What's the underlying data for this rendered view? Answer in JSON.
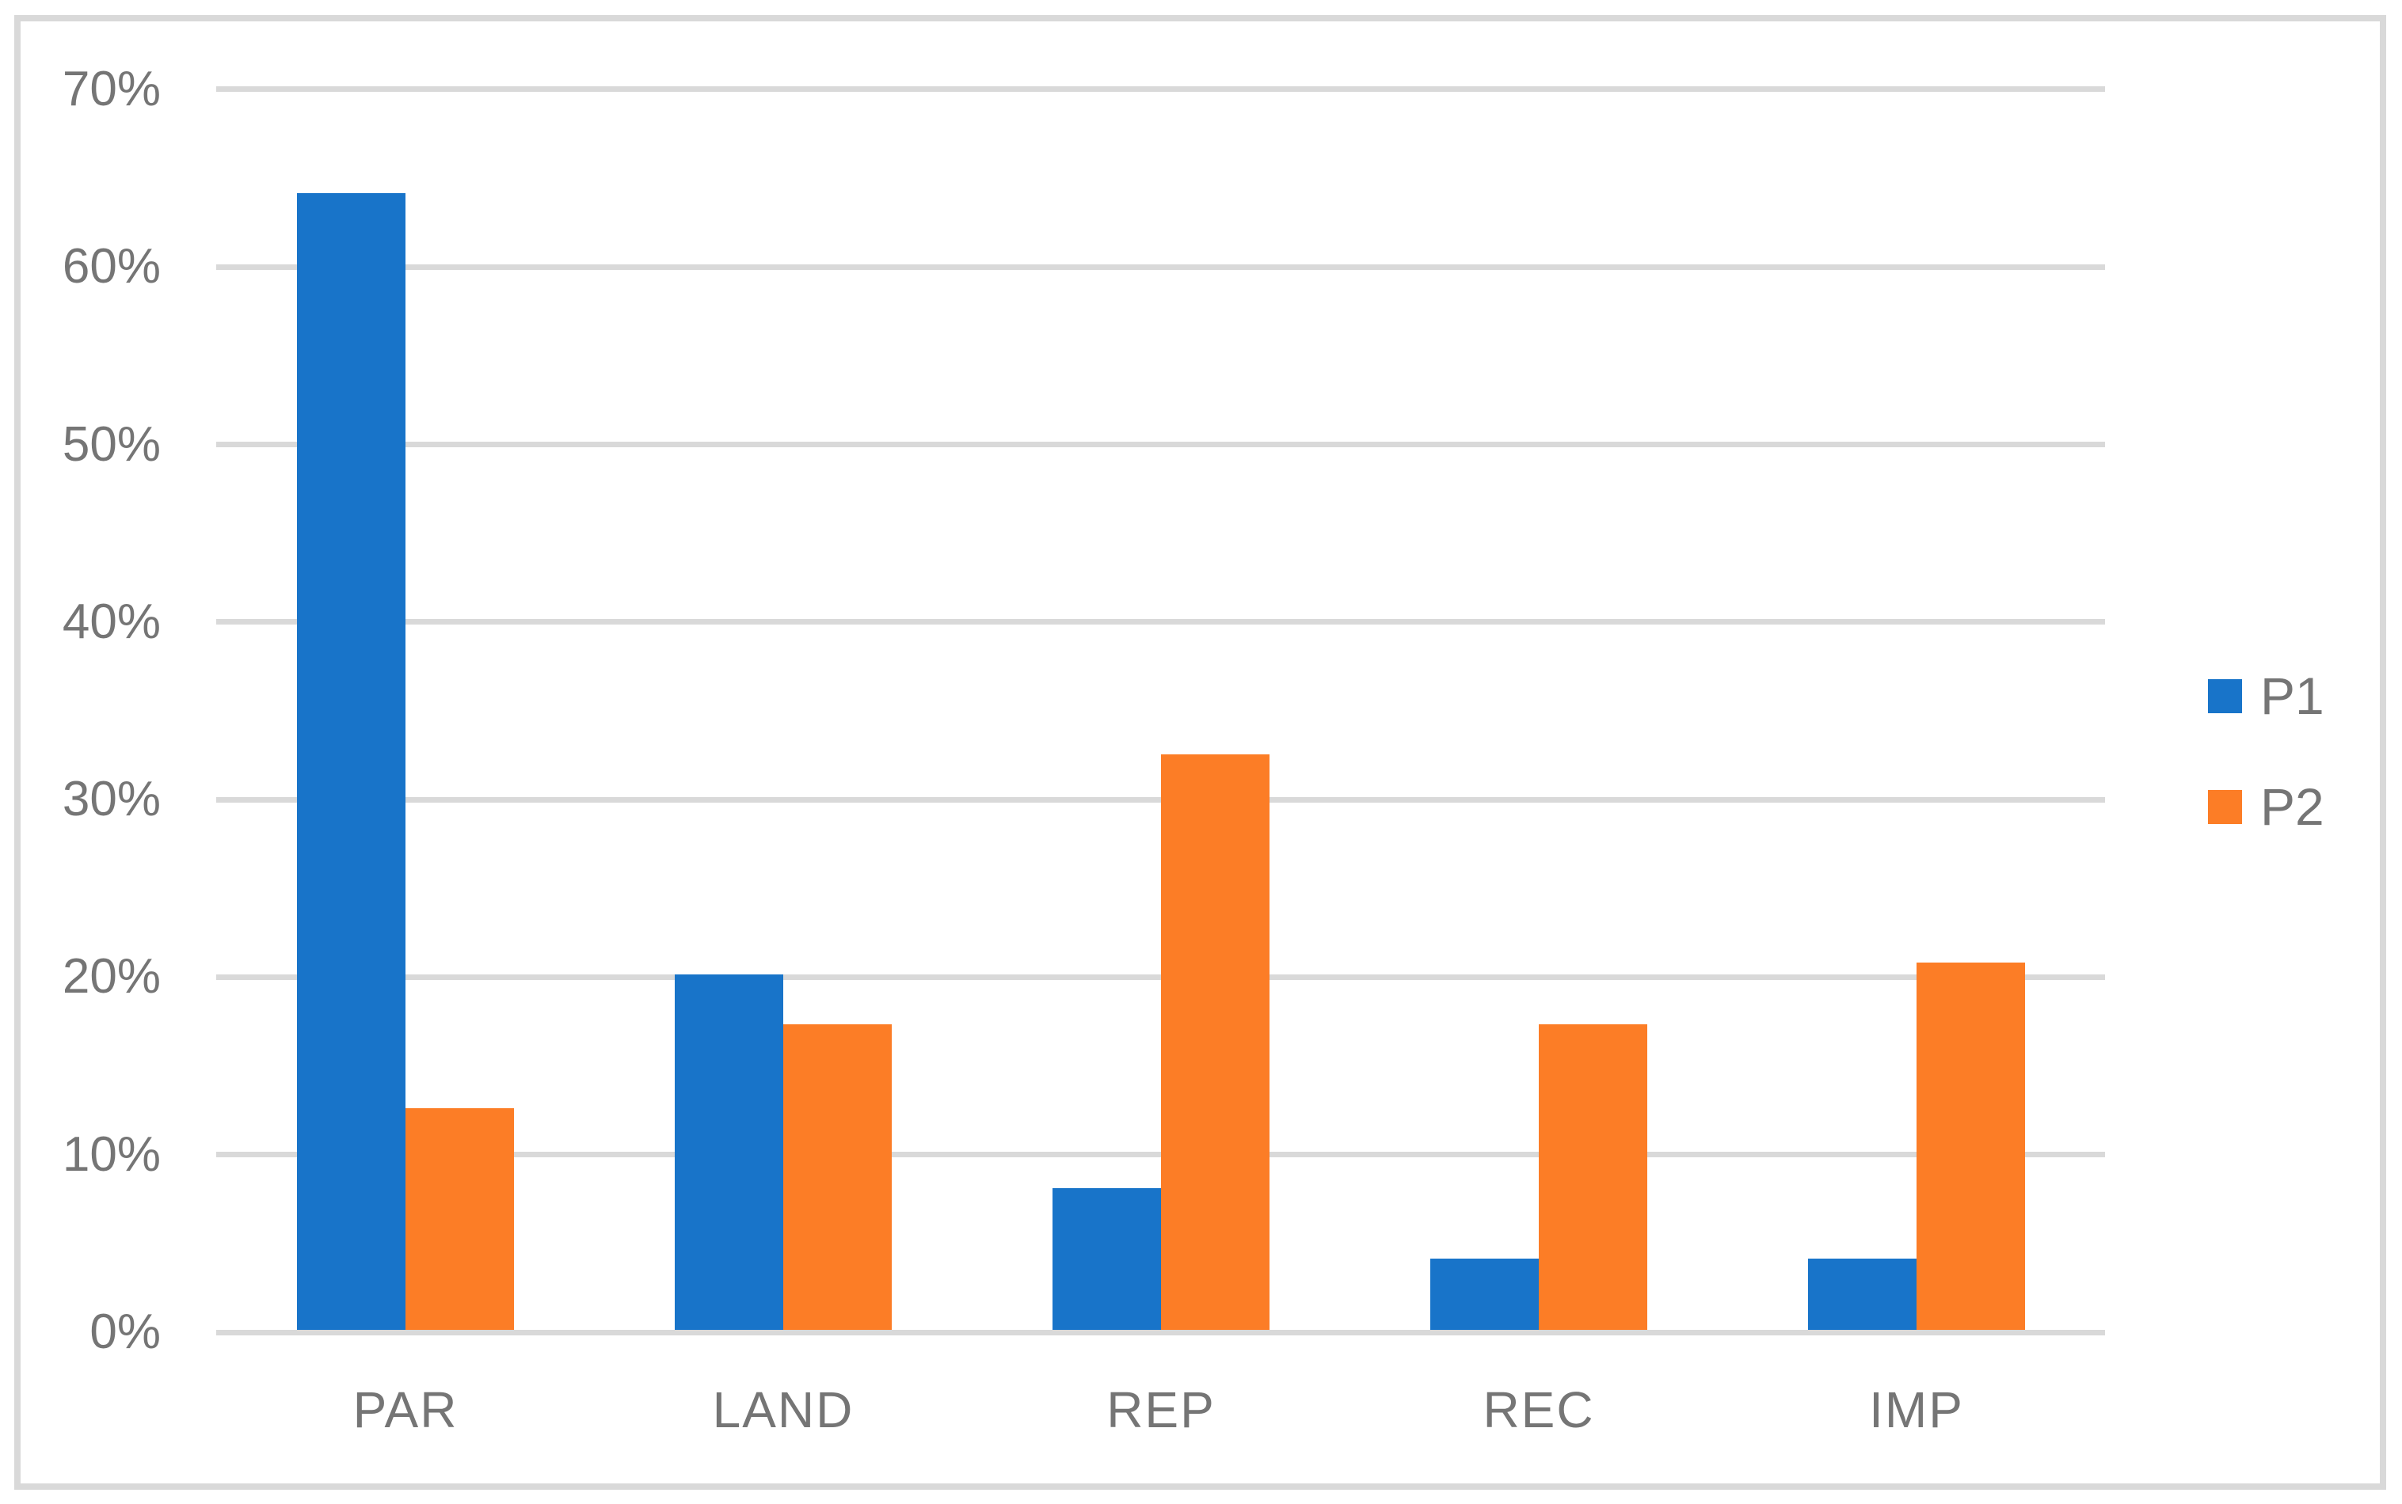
{
  "chart_data": {
    "type": "bar",
    "categories": [
      "PAR",
      "LAND",
      "REP",
      "REC",
      "IMP"
    ],
    "series": [
      {
        "name": "P1",
        "color": "#1874C9",
        "values": [
          64,
          20,
          8,
          4,
          4
        ]
      },
      {
        "name": "P2",
        "color": "#FC7D26",
        "values": [
          12.5,
          17.2,
          32.4,
          17.2,
          20.7
        ]
      }
    ],
    "ylim": [
      0,
      70
    ],
    "ytick_step": 10,
    "ytick_labels": [
      "0%",
      "10%",
      "20%",
      "30%",
      "40%",
      "50%",
      "60%",
      "70%"
    ],
    "grid": true,
    "legend_position": "right-middle"
  },
  "colors": {
    "gridline": "#D9D9D9",
    "frame_border": "#D9D9D9",
    "axis_text": "#757575",
    "background": "#FFFFFF"
  }
}
